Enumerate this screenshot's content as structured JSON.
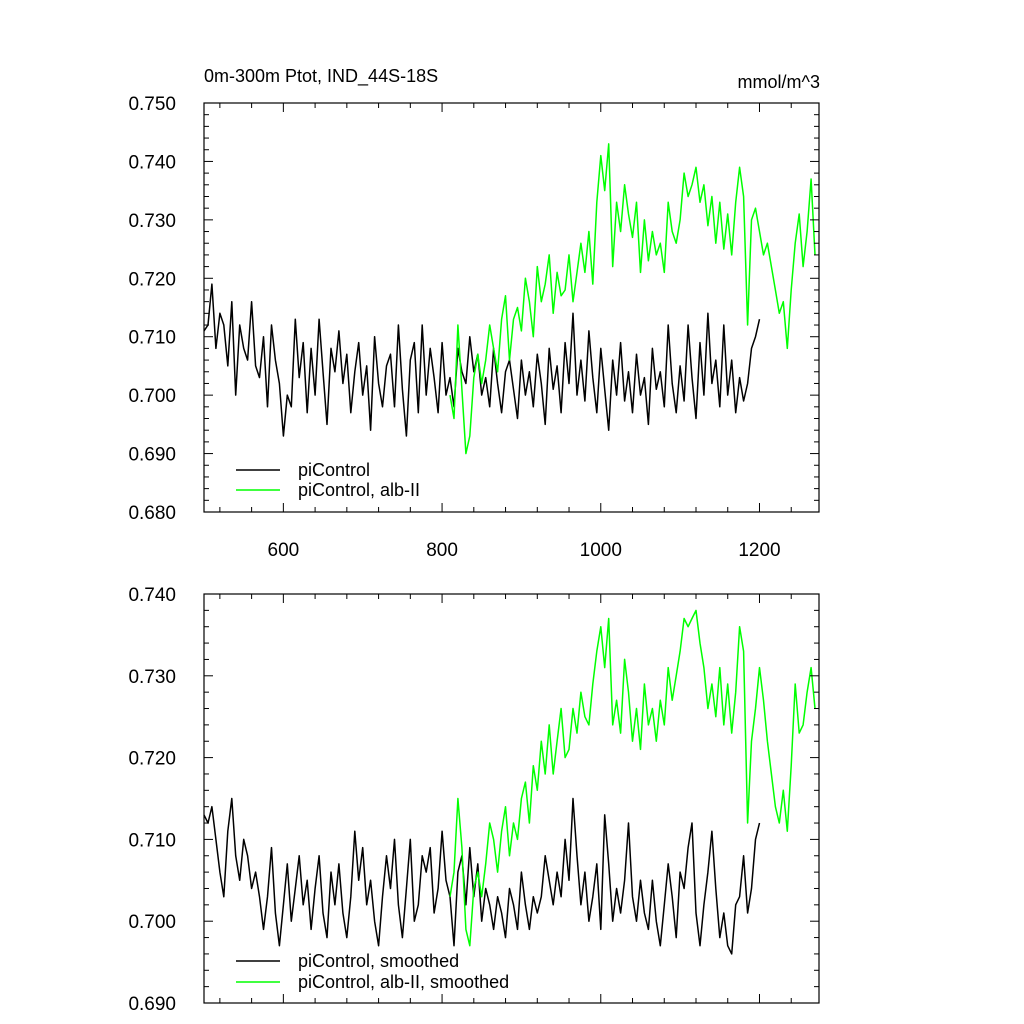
{
  "chart_data": [
    {
      "type": "line",
      "title": "0m-300m Ptot, IND_44S-18S",
      "units": "mmol/m^3",
      "xlabel": "",
      "ylabel": "",
      "xlim": [
        500,
        1275
      ],
      "ylim": [
        0.68,
        0.75
      ],
      "xticks": [
        600,
        800,
        1000,
        1200
      ],
      "xtick_labels": [
        "600",
        "800",
        "1000",
        "1200"
      ],
      "yticks": [
        0.68,
        0.69,
        0.7,
        0.71,
        0.72,
        0.73,
        0.74,
        0.75
      ],
      "ytick_labels": [
        "0.680",
        "0.690",
        "0.700",
        "0.710",
        "0.720",
        "0.730",
        "0.740",
        "0.750"
      ],
      "grid": false,
      "legend_position": "bottom-left",
      "series": [
        {
          "name": "piControl",
          "color": "#000000",
          "x": [
            500,
            505,
            510,
            515,
            520,
            525,
            530,
            535,
            540,
            545,
            550,
            555,
            560,
            565,
            570,
            575,
            580,
            585,
            590,
            595,
            600,
            605,
            610,
            615,
            620,
            625,
            630,
            635,
            640,
            645,
            650,
            655,
            660,
            665,
            670,
            675,
            680,
            685,
            690,
            695,
            700,
            705,
            710,
            715,
            720,
            725,
            730,
            735,
            740,
            745,
            750,
            755,
            760,
            765,
            770,
            775,
            780,
            785,
            790,
            795,
            800,
            805,
            810,
            815,
            820,
            825,
            830,
            835,
            840,
            845,
            850,
            855,
            860,
            865,
            870,
            875,
            880,
            885,
            890,
            895,
            900,
            905,
            910,
            915,
            920,
            925,
            930,
            935,
            940,
            945,
            950,
            955,
            960,
            965,
            970,
            975,
            980,
            985,
            990,
            995,
            1000,
            1005,
            1010,
            1015,
            1020,
            1025,
            1030,
            1035,
            1040,
            1045,
            1050,
            1055,
            1060,
            1065,
            1070,
            1075,
            1080,
            1085,
            1090,
            1095,
            1100,
            1105,
            1110,
            1115,
            1120,
            1125,
            1130,
            1135,
            1140,
            1145,
            1150,
            1155,
            1160,
            1165,
            1170,
            1175,
            1180,
            1185,
            1190,
            1195,
            1200
          ],
          "values": [
            0.711,
            0.712,
            0.719,
            0.708,
            0.714,
            0.712,
            0.705,
            0.716,
            0.7,
            0.712,
            0.708,
            0.706,
            0.716,
            0.705,
            0.703,
            0.71,
            0.698,
            0.712,
            0.706,
            0.702,
            0.693,
            0.7,
            0.698,
            0.713,
            0.703,
            0.709,
            0.697,
            0.708,
            0.7,
            0.713,
            0.704,
            0.695,
            0.708,
            0.704,
            0.711,
            0.702,
            0.707,
            0.697,
            0.704,
            0.709,
            0.7,
            0.705,
            0.694,
            0.71,
            0.702,
            0.698,
            0.705,
            0.707,
            0.698,
            0.712,
            0.701,
            0.693,
            0.706,
            0.709,
            0.697,
            0.712,
            0.7,
            0.708,
            0.703,
            0.697,
            0.709,
            0.7,
            0.703,
            0.698,
            0.708,
            0.704,
            0.702,
            0.71,
            0.704,
            0.707,
            0.7,
            0.703,
            0.698,
            0.708,
            0.702,
            0.697,
            0.704,
            0.706,
            0.701,
            0.696,
            0.706,
            0.7,
            0.704,
            0.698,
            0.707,
            0.702,
            0.695,
            0.708,
            0.701,
            0.705,
            0.697,
            0.709,
            0.702,
            0.714,
            0.7,
            0.706,
            0.699,
            0.711,
            0.703,
            0.697,
            0.708,
            0.701,
            0.694,
            0.706,
            0.7,
            0.709,
            0.699,
            0.704,
            0.697,
            0.707,
            0.7,
            0.703,
            0.695,
            0.708,
            0.701,
            0.704,
            0.698,
            0.712,
            0.702,
            0.697,
            0.705,
            0.699,
            0.712,
            0.703,
            0.696,
            0.709,
            0.7,
            0.714,
            0.702,
            0.706,
            0.698,
            0.712,
            0.7,
            0.706,
            0.697,
            0.703,
            0.699,
            0.702,
            0.708,
            0.71,
            0.713
          ],
          "line_width": 1.5
        },
        {
          "name": "piControl, alb-II",
          "color": "#00ff00",
          "x": [
            810,
            815,
            820,
            825,
            830,
            835,
            840,
            845,
            850,
            855,
            860,
            865,
            870,
            875,
            880,
            885,
            890,
            895,
            900,
            905,
            910,
            915,
            920,
            925,
            930,
            935,
            940,
            945,
            950,
            955,
            960,
            965,
            970,
            975,
            980,
            985,
            990,
            995,
            1000,
            1005,
            1010,
            1015,
            1020,
            1025,
            1030,
            1035,
            1040,
            1045,
            1050,
            1055,
            1060,
            1065,
            1070,
            1075,
            1080,
            1085,
            1090,
            1095,
            1100,
            1105,
            1110,
            1115,
            1120,
            1125,
            1130,
            1135,
            1140,
            1145,
            1150,
            1155,
            1160,
            1165,
            1170,
            1175,
            1180,
            1185,
            1190,
            1195,
            1200,
            1205,
            1210,
            1215,
            1220,
            1225,
            1230,
            1235,
            1240,
            1245,
            1250,
            1255,
            1260,
            1265,
            1270
          ],
          "values": [
            0.7,
            0.696,
            0.712,
            0.701,
            0.69,
            0.693,
            0.703,
            0.707,
            0.702,
            0.706,
            0.712,
            0.708,
            0.704,
            0.713,
            0.717,
            0.706,
            0.713,
            0.715,
            0.711,
            0.72,
            0.716,
            0.71,
            0.722,
            0.716,
            0.719,
            0.724,
            0.714,
            0.721,
            0.717,
            0.718,
            0.724,
            0.716,
            0.721,
            0.726,
            0.721,
            0.728,
            0.719,
            0.733,
            0.741,
            0.735,
            0.743,
            0.722,
            0.733,
            0.728,
            0.736,
            0.731,
            0.727,
            0.733,
            0.721,
            0.73,
            0.723,
            0.728,
            0.724,
            0.726,
            0.721,
            0.733,
            0.728,
            0.726,
            0.73,
            0.738,
            0.734,
            0.736,
            0.739,
            0.733,
            0.736,
            0.729,
            0.734,
            0.726,
            0.733,
            0.725,
            0.731,
            0.724,
            0.733,
            0.739,
            0.734,
            0.712,
            0.73,
            0.732,
            0.728,
            0.724,
            0.726,
            0.722,
            0.718,
            0.714,
            0.716,
            0.708,
            0.718,
            0.726,
            0.731,
            0.722,
            0.728,
            0.737,
            0.724
          ],
          "line_width": 1.5
        }
      ]
    },
    {
      "type": "line",
      "title": "",
      "xlabel": "",
      "ylabel": "",
      "xlim": [
        500,
        1275
      ],
      "ylim": [
        0.69,
        0.74
      ],
      "xticks": [
        600,
        800,
        1000,
        1200
      ],
      "yticks": [
        0.69,
        0.7,
        0.71,
        0.72,
        0.73,
        0.74
      ],
      "ytick_labels": [
        "0.690",
        "0.700",
        "0.710",
        "0.720",
        "0.730",
        "0.740"
      ],
      "grid": false,
      "legend_position": "bottom-left",
      "series": [
        {
          "name": "piControl, smoothed",
          "color": "#000000",
          "x": [
            500,
            505,
            510,
            515,
            520,
            525,
            530,
            535,
            540,
            545,
            550,
            555,
            560,
            565,
            570,
            575,
            580,
            585,
            590,
            595,
            600,
            605,
            610,
            615,
            620,
            625,
            630,
            635,
            640,
            645,
            650,
            655,
            660,
            665,
            670,
            675,
            680,
            685,
            690,
            695,
            700,
            705,
            710,
            715,
            720,
            725,
            730,
            735,
            740,
            745,
            750,
            755,
            760,
            765,
            770,
            775,
            780,
            785,
            790,
            795,
            800,
            805,
            810,
            815,
            820,
            825,
            830,
            835,
            840,
            845,
            850,
            855,
            860,
            865,
            870,
            875,
            880,
            885,
            890,
            895,
            900,
            905,
            910,
            915,
            920,
            925,
            930,
            935,
            940,
            945,
            950,
            955,
            960,
            965,
            970,
            975,
            980,
            985,
            990,
            995,
            1000,
            1005,
            1010,
            1015,
            1020,
            1025,
            1030,
            1035,
            1040,
            1045,
            1050,
            1055,
            1060,
            1065,
            1070,
            1075,
            1080,
            1085,
            1090,
            1095,
            1100,
            1105,
            1110,
            1115,
            1120,
            1125,
            1130,
            1135,
            1140,
            1145,
            1150,
            1155,
            1160,
            1165,
            1170,
            1175,
            1180,
            1185,
            1190,
            1195,
            1200
          ],
          "values": [
            0.713,
            0.712,
            0.714,
            0.71,
            0.706,
            0.703,
            0.711,
            0.715,
            0.708,
            0.705,
            0.71,
            0.708,
            0.704,
            0.706,
            0.703,
            0.699,
            0.703,
            0.709,
            0.701,
            0.697,
            0.702,
            0.707,
            0.7,
            0.704,
            0.708,
            0.702,
            0.705,
            0.699,
            0.704,
            0.708,
            0.701,
            0.698,
            0.706,
            0.702,
            0.707,
            0.701,
            0.698,
            0.703,
            0.711,
            0.705,
            0.709,
            0.702,
            0.705,
            0.7,
            0.697,
            0.703,
            0.708,
            0.704,
            0.71,
            0.702,
            0.698,
            0.704,
            0.71,
            0.7,
            0.702,
            0.708,
            0.706,
            0.709,
            0.701,
            0.704,
            0.711,
            0.705,
            0.703,
            0.697,
            0.706,
            0.708,
            0.702,
            0.709,
            0.703,
            0.707,
            0.7,
            0.704,
            0.702,
            0.699,
            0.703,
            0.701,
            0.698,
            0.704,
            0.702,
            0.699,
            0.706,
            0.702,
            0.699,
            0.703,
            0.701,
            0.703,
            0.708,
            0.705,
            0.702,
            0.706,
            0.703,
            0.71,
            0.705,
            0.715,
            0.708,
            0.702,
            0.706,
            0.7,
            0.703,
            0.707,
            0.699,
            0.713,
            0.707,
            0.7,
            0.704,
            0.701,
            0.705,
            0.712,
            0.703,
            0.7,
            0.705,
            0.701,
            0.699,
            0.705,
            0.7,
            0.697,
            0.702,
            0.707,
            0.703,
            0.698,
            0.706,
            0.704,
            0.709,
            0.712,
            0.701,
            0.697,
            0.702,
            0.706,
            0.711,
            0.704,
            0.698,
            0.701,
            0.697,
            0.696,
            0.702,
            0.703,
            0.708,
            0.701,
            0.704,
            0.71,
            0.712
          ],
          "line_width": 1.5
        },
        {
          "name": "piControl, alb-II, smoothed",
          "color": "#00ff00",
          "x": [
            810,
            815,
            820,
            825,
            830,
            835,
            840,
            845,
            850,
            855,
            860,
            865,
            870,
            875,
            880,
            885,
            890,
            895,
            900,
            905,
            910,
            915,
            920,
            925,
            930,
            935,
            940,
            945,
            950,
            955,
            960,
            965,
            970,
            975,
            980,
            985,
            990,
            995,
            1000,
            1005,
            1010,
            1015,
            1020,
            1025,
            1030,
            1035,
            1040,
            1045,
            1050,
            1055,
            1060,
            1065,
            1070,
            1075,
            1080,
            1085,
            1090,
            1095,
            1100,
            1105,
            1110,
            1115,
            1120,
            1125,
            1130,
            1135,
            1140,
            1145,
            1150,
            1155,
            1160,
            1165,
            1170,
            1175,
            1180,
            1185,
            1190,
            1195,
            1200,
            1205,
            1210,
            1215,
            1220,
            1225,
            1230,
            1235,
            1240,
            1245,
            1250,
            1255,
            1260,
            1265,
            1270
          ],
          "values": [
            0.703,
            0.706,
            0.715,
            0.709,
            0.699,
            0.697,
            0.704,
            0.706,
            0.703,
            0.707,
            0.712,
            0.71,
            0.706,
            0.711,
            0.714,
            0.708,
            0.712,
            0.71,
            0.715,
            0.717,
            0.712,
            0.719,
            0.716,
            0.722,
            0.718,
            0.724,
            0.718,
            0.722,
            0.726,
            0.72,
            0.721,
            0.726,
            0.723,
            0.728,
            0.725,
            0.724,
            0.729,
            0.733,
            0.736,
            0.731,
            0.737,
            0.724,
            0.727,
            0.723,
            0.732,
            0.728,
            0.722,
            0.726,
            0.721,
            0.729,
            0.724,
            0.726,
            0.722,
            0.727,
            0.724,
            0.731,
            0.727,
            0.73,
            0.733,
            0.737,
            0.736,
            0.737,
            0.738,
            0.734,
            0.731,
            0.726,
            0.729,
            0.725,
            0.731,
            0.724,
            0.729,
            0.723,
            0.728,
            0.736,
            0.733,
            0.712,
            0.722,
            0.726,
            0.731,
            0.727,
            0.722,
            0.718,
            0.714,
            0.712,
            0.716,
            0.711,
            0.719,
            0.729,
            0.723,
            0.724,
            0.728,
            0.731,
            0.726
          ],
          "line_width": 1.5
        }
      ]
    }
  ]
}
